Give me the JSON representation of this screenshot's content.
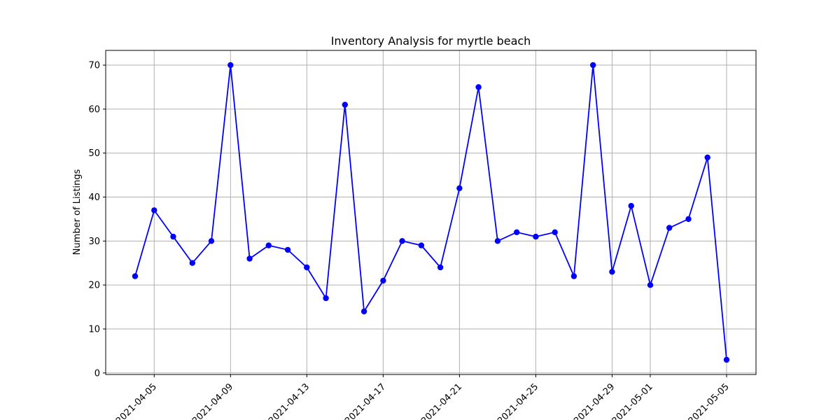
{
  "chart_data": {
    "type": "line",
    "title": "Inventory Analysis for myrtle beach",
    "xlabel": "",
    "ylabel": "Number of Listings",
    "x": [
      "2021-04-04",
      "2021-04-05",
      "2021-04-06",
      "2021-04-07",
      "2021-04-08",
      "2021-04-09",
      "2021-04-10",
      "2021-04-11",
      "2021-04-12",
      "2021-04-13",
      "2021-04-14",
      "2021-04-15",
      "2021-04-16",
      "2021-04-17",
      "2021-04-18",
      "2021-04-19",
      "2021-04-20",
      "2021-04-21",
      "2021-04-22",
      "2021-04-23",
      "2021-04-24",
      "2021-04-25",
      "2021-04-26",
      "2021-04-27",
      "2021-04-28",
      "2021-04-29",
      "2021-04-30",
      "2021-05-01",
      "2021-05-02",
      "2021-05-03",
      "2021-05-04",
      "2021-05-05"
    ],
    "values": [
      22,
      37,
      31,
      25,
      30,
      70,
      26,
      29,
      28,
      24,
      17,
      61,
      14,
      21,
      30,
      29,
      24,
      42,
      65,
      30,
      32,
      31,
      32,
      22,
      70,
      23,
      38,
      20,
      33,
      35,
      49,
      3
    ],
    "xlim": [
      "2021-04-02T11:00",
      "2021-05-06T13:00"
    ],
    "ylim": [
      -0.35,
      73.35
    ],
    "yticks": [
      0,
      10,
      20,
      30,
      40,
      50,
      60,
      70
    ],
    "xticks": [
      "2021-04-05",
      "2021-04-09",
      "2021-04-13",
      "2021-04-17",
      "2021-04-21",
      "2021-04-25",
      "2021-04-29",
      "2021-05-01",
      "2021-05-05"
    ],
    "grid": true,
    "legend": "none",
    "color": "#0000ff",
    "marker": "circle"
  }
}
